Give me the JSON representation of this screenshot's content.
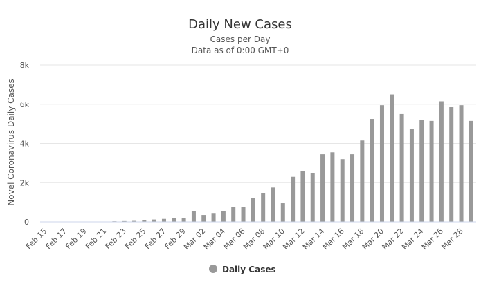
{
  "chart_data": {
    "type": "bar",
    "title": "Daily New Cases",
    "subtitle_lines": [
      "Cases per Day",
      "Data as of 0:00 GMT+0"
    ],
    "ylabel": "Novel Coronavirus Daily Cases",
    "xlabel": "",
    "ylim": [
      0,
      8000
    ],
    "yticks": [
      0,
      2000,
      4000,
      6000,
      8000
    ],
    "ytick_labels": [
      "0",
      "2k",
      "4k",
      "6k",
      "8k"
    ],
    "grid": true,
    "legend_position": "bottom-center",
    "bar_color": "#999999",
    "categories": [
      "Feb 15",
      "Feb 16",
      "Feb 17",
      "Feb 18",
      "Feb 19",
      "Feb 20",
      "Feb 21",
      "Feb 22",
      "Feb 23",
      "Feb 24",
      "Feb 25",
      "Feb 26",
      "Feb 27",
      "Feb 28",
      "Feb 29",
      "Mar 01",
      "Mar 02",
      "Mar 03",
      "Mar 04",
      "Mar 05",
      "Mar 06",
      "Mar 07",
      "Mar 08",
      "Mar 09",
      "Mar 10",
      "Mar 11",
      "Mar 12",
      "Mar 13",
      "Mar 14",
      "Mar 15",
      "Mar 16",
      "Mar 17",
      "Mar 18",
      "Mar 19",
      "Mar 20",
      "Mar 21",
      "Mar 22",
      "Mar 23",
      "Mar 24",
      "Mar 25",
      "Mar 26",
      "Mar 27",
      "Mar 28",
      "Mar 29"
    ],
    "tick_labels": [
      "Feb 15",
      "Feb 17",
      "Feb 19",
      "Feb 21",
      "Feb 23",
      "Feb 25",
      "Feb 27",
      "Feb 29",
      "Mar 02",
      "Mar 04",
      "Mar 06",
      "Mar 08",
      "Mar 10",
      "Mar 12",
      "Mar 14",
      "Mar 16",
      "Mar 18",
      "Mar 20",
      "Mar 22",
      "Mar 24",
      "Mar 26",
      "Mar 28"
    ],
    "series": [
      {
        "name": "Daily Cases",
        "color": "#999999",
        "values": [
          0,
          0,
          0,
          0,
          0,
          0,
          0,
          30,
          40,
          50,
          100,
          120,
          150,
          200,
          200,
          550,
          350,
          450,
          550,
          750,
          750,
          1200,
          1450,
          1750,
          950,
          2300,
          2600,
          2500,
          3450,
          3550,
          3200,
          3450,
          4150,
          5250,
          5950,
          6500,
          5500,
          4750,
          5200,
          5150,
          6150,
          5850,
          5950,
          5150
        ]
      }
    ]
  }
}
